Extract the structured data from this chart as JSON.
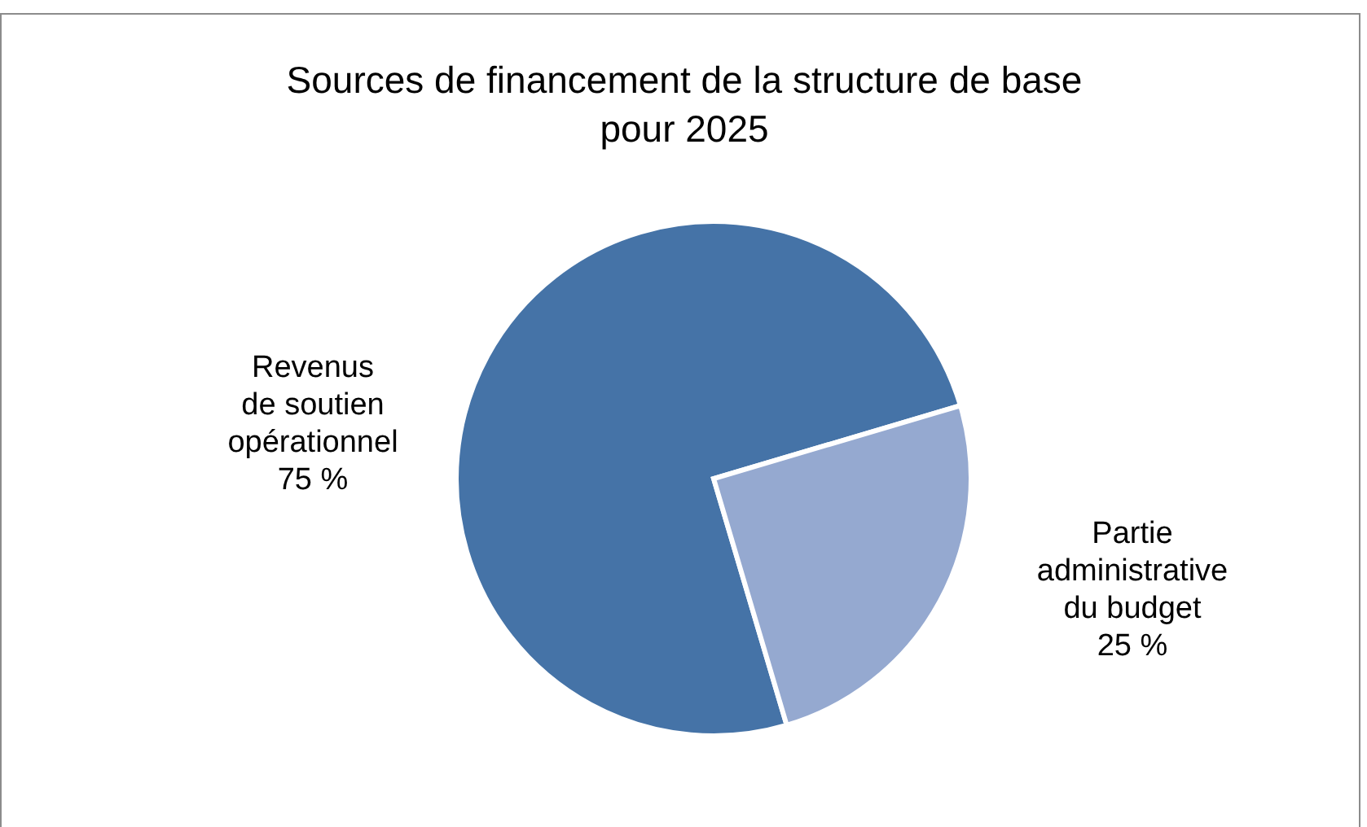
{
  "chart_data": {
    "type": "pie",
    "title": "Sources de financement de la structure de base pour 2025",
    "categories": [
      "Revenus\nde soutien\nopérationnel",
      "Partie\nadministrative\ndu budget"
    ],
    "values": [
      75,
      25
    ],
    "value_labels": [
      "75 %",
      "25 %"
    ],
    "colors": [
      "#4573a7",
      "#95a9d0"
    ],
    "legend": false
  }
}
